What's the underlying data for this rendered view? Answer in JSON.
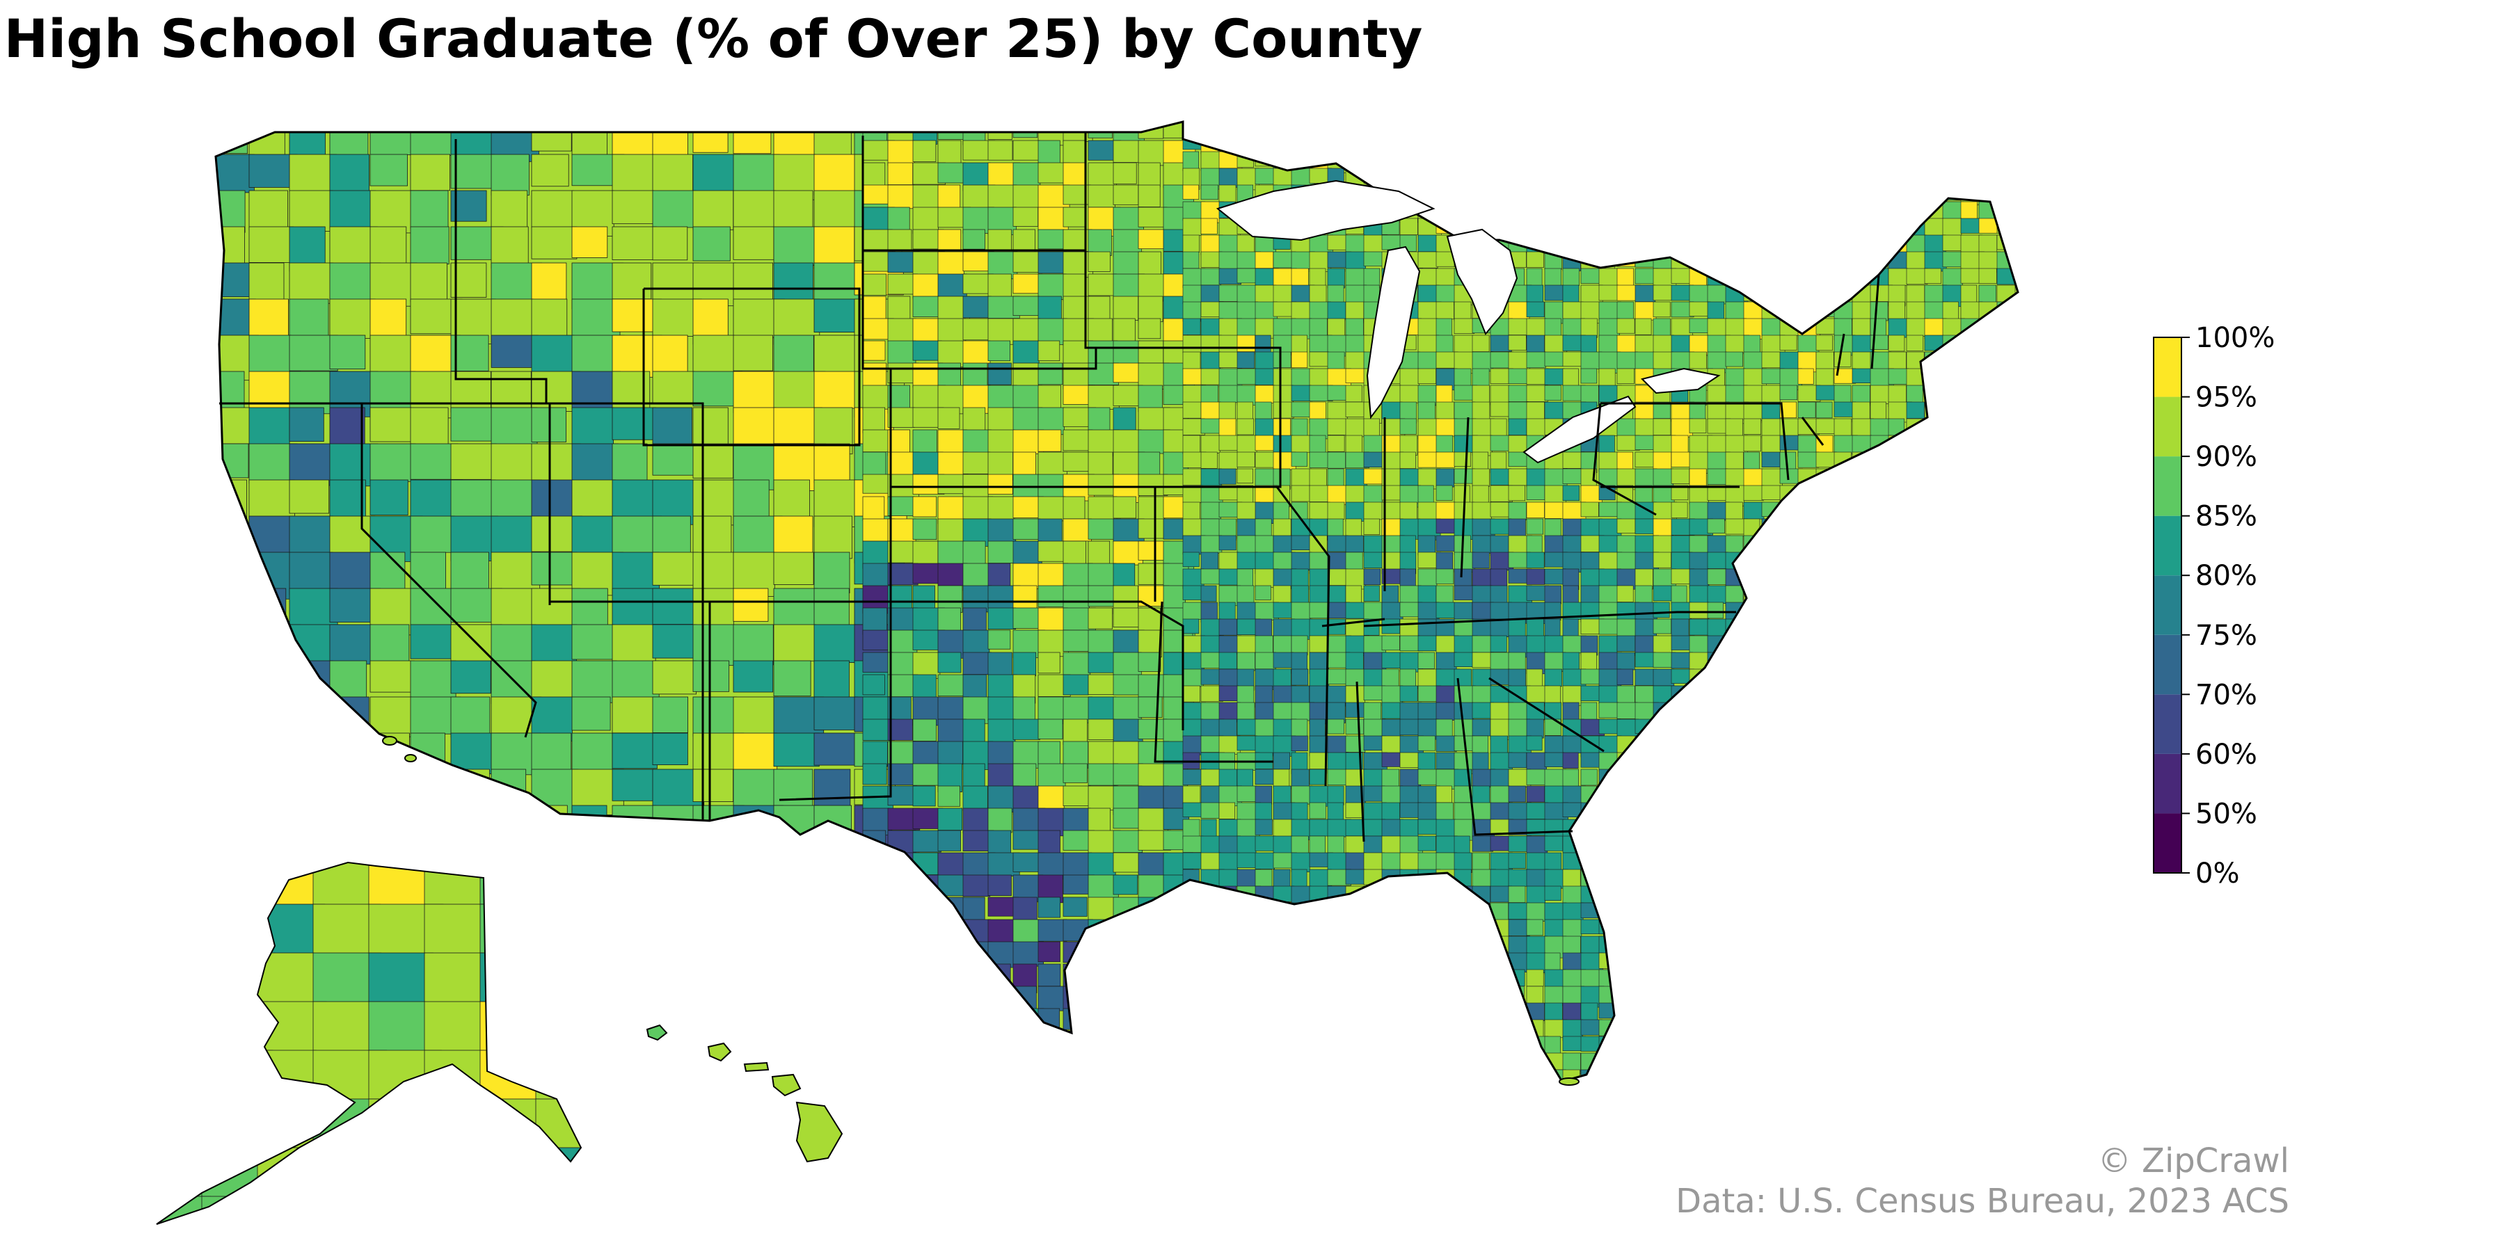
{
  "title": "High School Graduate (% of Over 25) by County",
  "legend": {
    "tick_labels": [
      "0%",
      "50%",
      "60%",
      "70%",
      "75%",
      "80%",
      "85%",
      "90%",
      "95%",
      "100%"
    ],
    "bins": [
      {
        "range": "0%–50%",
        "color": "#440154"
      },
      {
        "range": "50%–60%",
        "color": "#482878"
      },
      {
        "range": "60%–70%",
        "color": "#3e4989"
      },
      {
        "range": "70%–75%",
        "color": "#31688e"
      },
      {
        "range": "75%–80%",
        "color": "#26828e"
      },
      {
        "range": "80%–85%",
        "color": "#1f9e89"
      },
      {
        "range": "85%–90%",
        "color": "#5ec962"
      },
      {
        "range": "90%–95%",
        "color": "#a8db34"
      },
      {
        "range": "95%–100%",
        "color": "#fde725"
      }
    ]
  },
  "credits": {
    "copyright": "© ZipCrawl",
    "source": "Data: U.S. Census Bureau, 2023 ACS"
  }
}
